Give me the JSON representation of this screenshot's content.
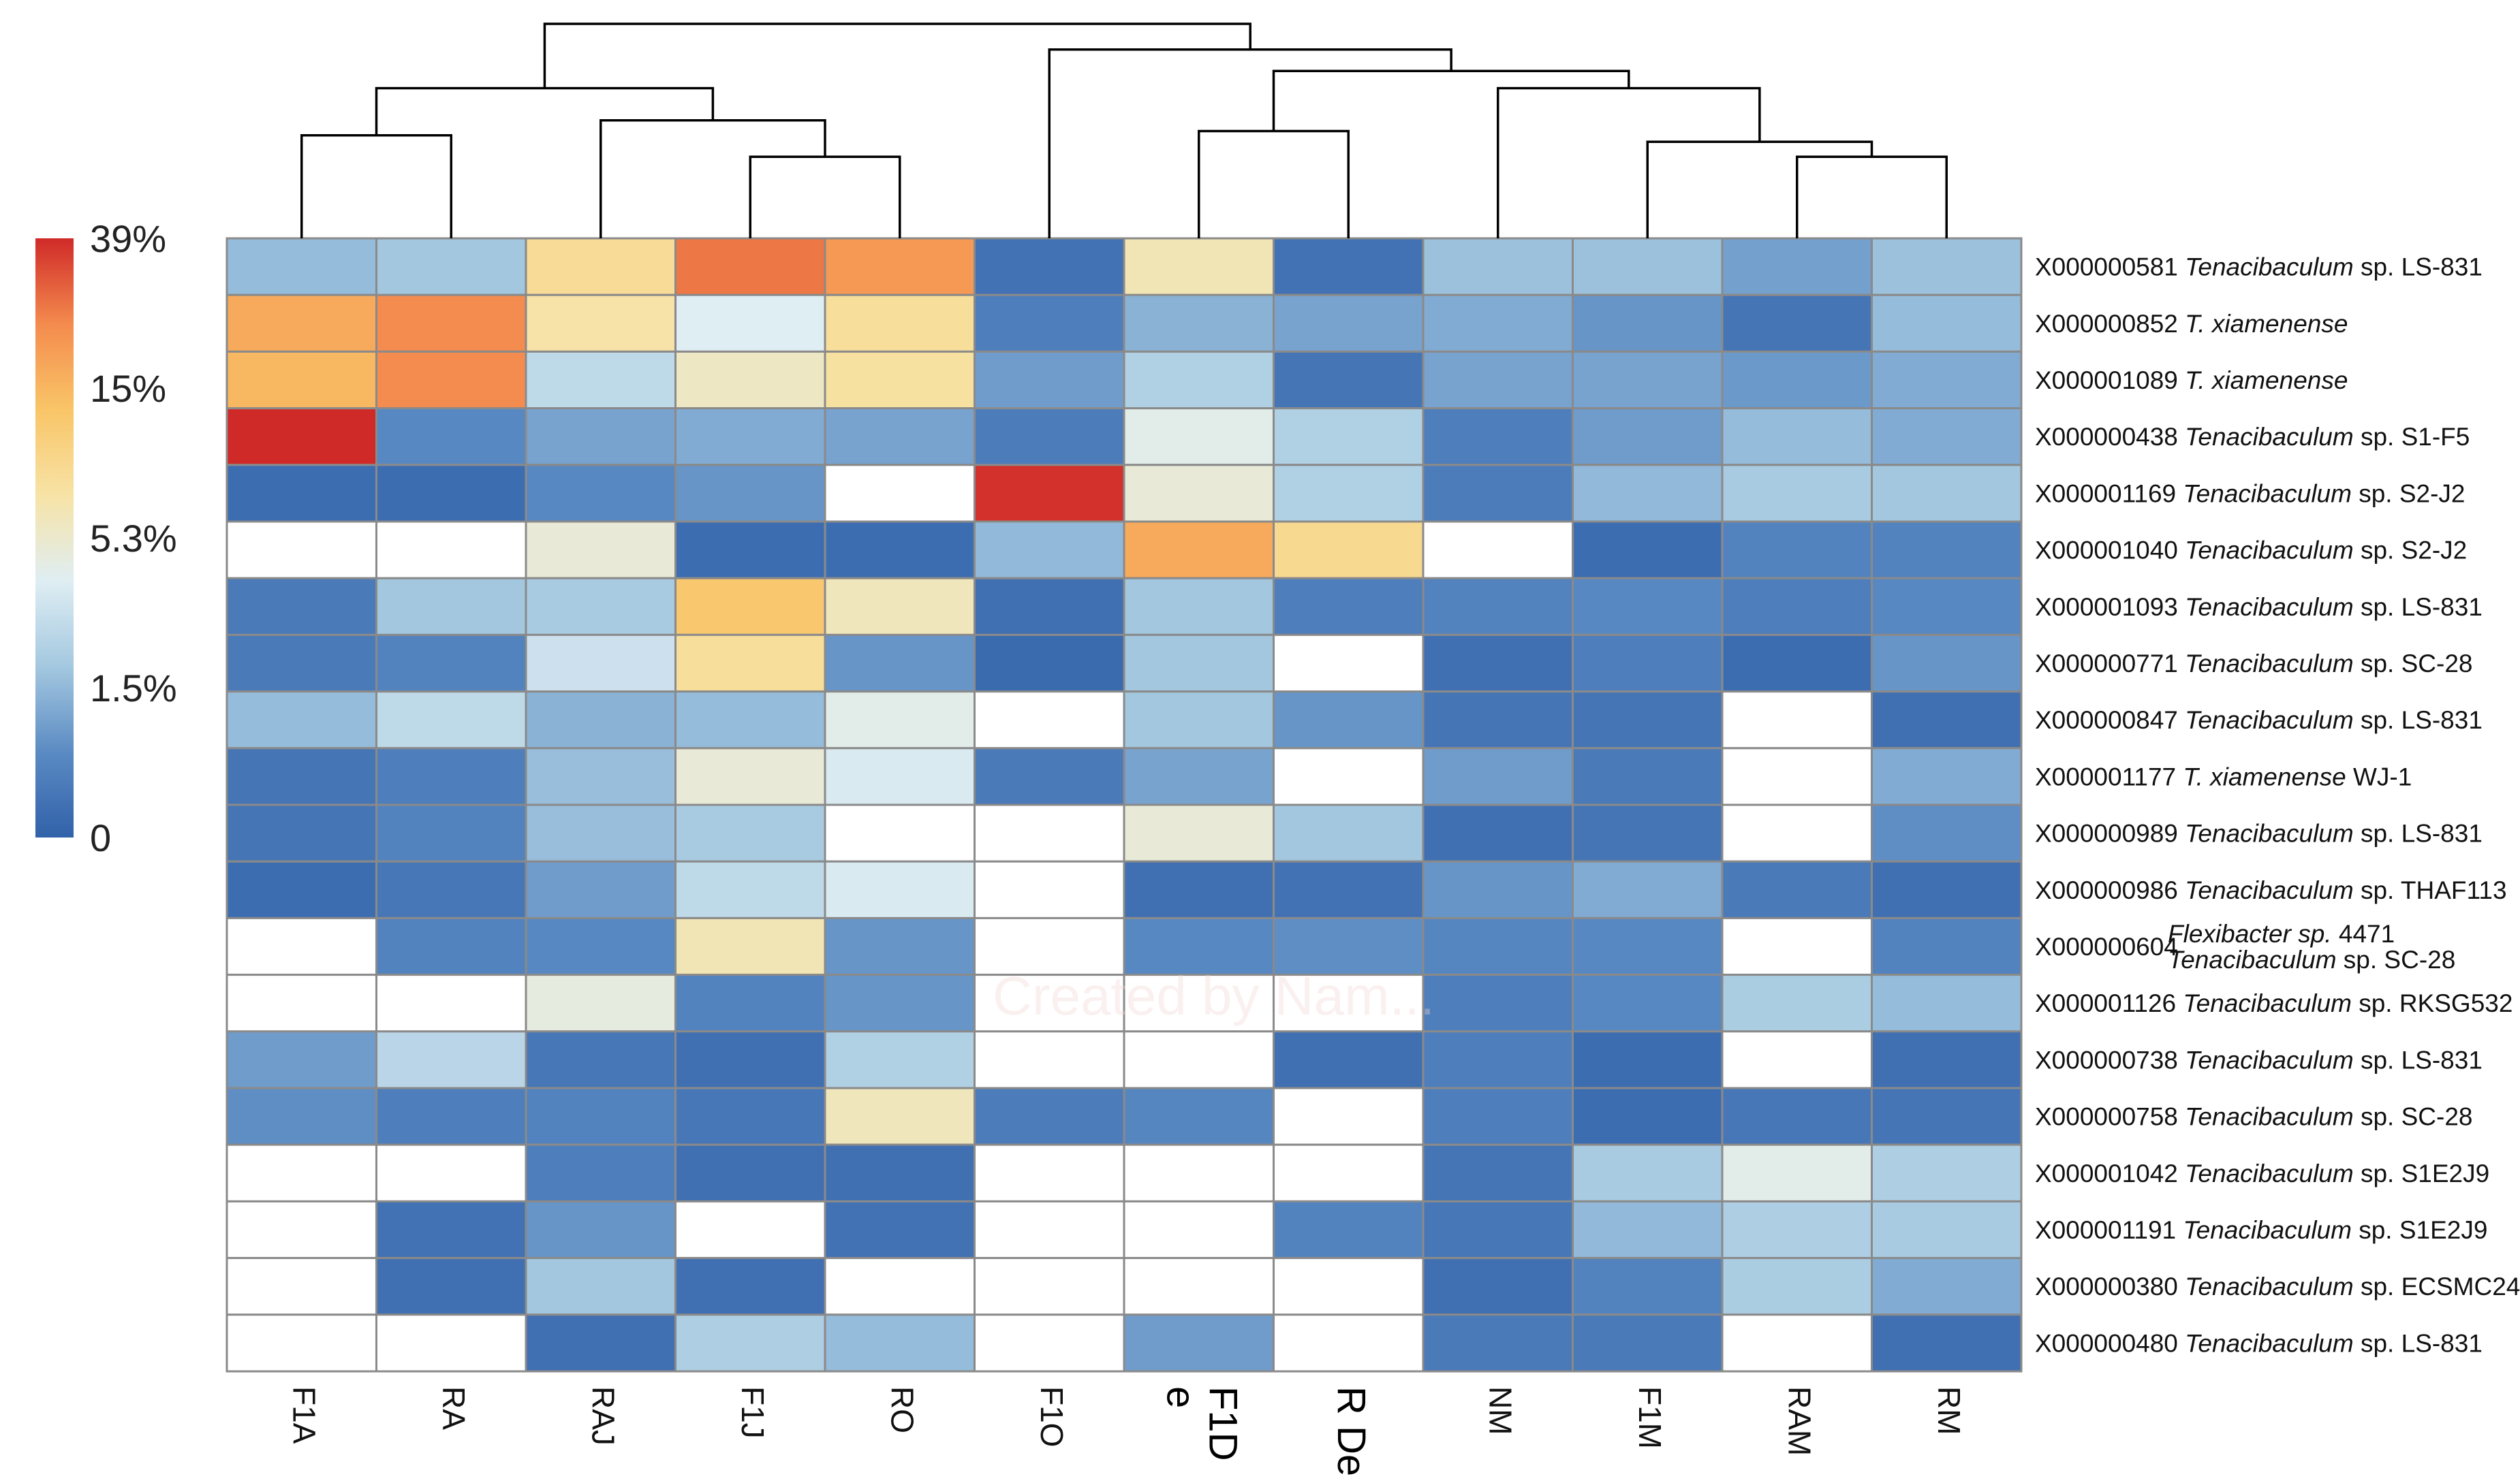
{
  "chart_data": {
    "type": "heatmap",
    "title": "",
    "columns": [
      "F1A",
      "RA",
      "RAJ",
      "F1J",
      "RO",
      "F1O",
      "F1De",
      "R De",
      "NM",
      "F1M",
      "RAM",
      "RM"
    ],
    "column_labels_display": [
      [
        "F1A"
      ],
      [
        "RA"
      ],
      [
        "RAJ"
      ],
      [
        "F1J"
      ],
      [
        "RO"
      ],
      [
        "F1O"
      ],
      [
        "F1D",
        "e"
      ],
      [
        "R De"
      ],
      [
        "NM"
      ],
      [
        "F1M"
      ],
      [
        "RAM"
      ],
      [
        "RM"
      ]
    ],
    "rows": [
      {
        "id": "X000000581",
        "taxon": "Tenacibaculum",
        "rest": " sp. LS-831"
      },
      {
        "id": "X000000852",
        "taxon": "T. xiamenense",
        "rest": ""
      },
      {
        "id": "X000001089",
        "taxon": "T. xiamenense",
        "rest": ""
      },
      {
        "id": "X000000438",
        "taxon": "Tenacibaculum",
        "rest": " sp. S1-F5"
      },
      {
        "id": "X000001169",
        "taxon": "Tenacibaculum",
        "rest": " sp. S2-J2"
      },
      {
        "id": "X000001040",
        "taxon": "Tenacibaculum",
        "rest": " sp. S2-J2"
      },
      {
        "id": "X000001093",
        "taxon": "Tenacibaculum",
        "rest": " sp. LS-831"
      },
      {
        "id": "X000000771",
        "taxon": "Tenacibaculum",
        "rest": " sp. SC-28"
      },
      {
        "id": "X000000847",
        "taxon": "Tenacibaculum",
        "rest": " sp. LS-831"
      },
      {
        "id": "X000001177",
        "taxon": "T. xiamenense",
        "rest": " WJ-1"
      },
      {
        "id": "X000000989",
        "taxon": "Tenacibaculum",
        "rest": " sp. LS-831"
      },
      {
        "id": "X000000986",
        "taxon": "Tenacibaculum",
        "rest": " sp. THAF113"
      },
      {
        "id": "X000000604",
        "taxon": "Flexibacter sp.",
        "rest": " 4471",
        "taxon2": "Tenacibaculum",
        "rest2": " sp. SC-28"
      },
      {
        "id": "X000001126",
        "taxon": "Tenacibaculum",
        "rest": " sp. RKSG532"
      },
      {
        "id": "X000000738",
        "taxon": "Tenacibaculum",
        "rest": " sp. LS-831"
      },
      {
        "id": "X000000758",
        "taxon": "Tenacibaculum",
        "rest": " sp. SC-28"
      },
      {
        "id": "X000001042",
        "taxon": "Tenacibaculum",
        "rest": " sp. S1E2J9"
      },
      {
        "id": "X000001191",
        "taxon": "Tenacibaculum",
        "rest": " sp. S1E2J9"
      },
      {
        "id": "X000000380",
        "taxon": "Tenacibaculum",
        "rest": " sp. ECSMC24"
      },
      {
        "id": "X000000480",
        "taxon": "Tenacibaculum",
        "rest": " sp. LS-831"
      }
    ],
    "values": [
      [
        1.6,
        2.0,
        9.5,
        28.0,
        22.0,
        0.35,
        7.0,
        0.35,
        1.8,
        1.8,
        1.15,
        1.8
      ],
      [
        18.0,
        25.0,
        8.0,
        4.2,
        9.0,
        0.6,
        1.4,
        1.2,
        1.3,
        1.0,
        0.4,
        1.6
      ],
      [
        15.0,
        25.0,
        3.0,
        6.0,
        8.5,
        1.1,
        2.5,
        0.4,
        1.2,
        1.2,
        1.05,
        1.3
      ],
      [
        39.0,
        0.8,
        1.2,
        1.3,
        1.2,
        0.55,
        4.5,
        2.5,
        0.6,
        1.1,
        1.6,
        1.3
      ],
      [
        0.25,
        0.25,
        0.8,
        1.0,
        null,
        38.0,
        5.0,
        2.5,
        0.55,
        1.5,
        2.2,
        2.0
      ],
      [
        null,
        null,
        5.0,
        0.25,
        0.25,
        1.5,
        18.0,
        10.0,
        null,
        0.25,
        0.7,
        0.7
      ],
      [
        0.5,
        2.0,
        2.2,
        13.0,
        6.5,
        0.3,
        2.0,
        0.6,
        0.7,
        0.8,
        0.6,
        0.8
      ],
      [
        0.5,
        0.7,
        3.5,
        9.0,
        1.0,
        0.2,
        2.0,
        null,
        0.3,
        0.6,
        0.25,
        1.0
      ],
      [
        1.6,
        3.0,
        1.4,
        1.6,
        4.5,
        null,
        2.0,
        1.0,
        0.4,
        0.4,
        null,
        0.3
      ],
      [
        0.4,
        0.6,
        1.7,
        5.0,
        4.0,
        0.5,
        1.2,
        null,
        1.1,
        0.5,
        null,
        1.3
      ],
      [
        0.4,
        0.7,
        1.7,
        2.2,
        null,
        null,
        5.0,
        2.0,
        0.3,
        0.4,
        null,
        0.9
      ],
      [
        0.25,
        0.45,
        1.1,
        3.0,
        4.0,
        null,
        0.3,
        0.35,
        1.0,
        1.3,
        0.5,
        0.3
      ],
      [
        null,
        0.7,
        0.8,
        7.0,
        1.0,
        null,
        0.8,
        0.9,
        0.75,
        0.8,
        null,
        0.7
      ],
      [
        null,
        null,
        4.8,
        0.7,
        1.0,
        null,
        null,
        null,
        0.6,
        0.8,
        2.3,
        1.6
      ],
      [
        1.1,
        2.8,
        0.45,
        0.3,
        2.5,
        null,
        null,
        0.3,
        0.6,
        0.25,
        null,
        0.3
      ],
      [
        0.9,
        0.6,
        0.7,
        0.45,
        6.5,
        0.55,
        0.75,
        null,
        0.6,
        0.25,
        0.45,
        0.4
      ],
      [
        null,
        null,
        0.6,
        0.3,
        0.3,
        null,
        null,
        null,
        0.4,
        2.2,
        4.5,
        2.4
      ],
      [
        null,
        0.35,
        1.0,
        null,
        0.35,
        null,
        null,
        0.7,
        0.45,
        1.5,
        2.4,
        2.2
      ],
      [
        null,
        0.3,
        2.0,
        0.3,
        null,
        null,
        null,
        null,
        0.3,
        0.7,
        2.3,
        1.3
      ],
      [
        null,
        null,
        0.3,
        2.4,
        1.6,
        null,
        1.1,
        null,
        0.5,
        0.5,
        null,
        0.3
      ]
    ],
    "color_scale": {
      "ticks": [
        {
          "label": "39%",
          "value": 39
        },
        {
          "label": "15%",
          "value": 15
        },
        {
          "label": "5.3%",
          "value": 5.3
        },
        {
          "label": "1.5%",
          "value": 1.5
        },
        {
          "label": "0",
          "value": 0
        }
      ],
      "stops": [
        "#3161a9",
        "#5b8bc3",
        "#a4c8e0",
        "#dfeef3",
        "#f7e3a6",
        "#f9c567",
        "#f48b4e",
        "#d02a28"
      ],
      "missing_color": "#ffffff",
      "grid_color": "#8a8a8a"
    },
    "column_dendrogram": {
      "merges": [
        [
          0,
          1
        ],
        [
          3,
          4
        ],
        [
          2,
          13
        ],
        [
          12,
          14
        ],
        [
          6,
          7
        ],
        [
          10,
          11
        ],
        [
          9,
          17
        ],
        [
          8,
          18
        ],
        [
          16,
          19
        ],
        [
          5,
          20
        ],
        [
          15,
          21
        ]
      ],
      "heights": [
        0.48,
        0.38,
        0.55,
        0.7,
        0.5,
        0.38,
        0.45,
        0.7,
        0.78,
        0.88,
        1.0
      ]
    },
    "watermark": "Created by Nam..."
  }
}
